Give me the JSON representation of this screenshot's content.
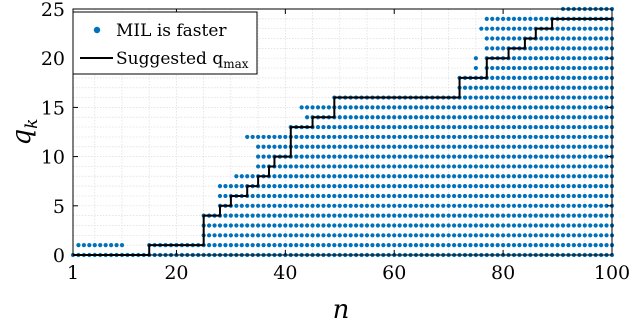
{
  "chart_data": {
    "type": "scatter",
    "xlabel": "n",
    "ylabel": "q",
    "ylabel_sub": "k",
    "xlim": [
      1,
      100
    ],
    "ylim": [
      0,
      25
    ],
    "xticks": [
      1,
      20,
      40,
      60,
      80,
      100
    ],
    "yticks": [
      0,
      5,
      10,
      15,
      20,
      25
    ],
    "grid": true,
    "legend_position": "top-left",
    "colors": {
      "points": "#0072BD",
      "line": "#000000"
    },
    "series": [
      {
        "name": "MIL is faster",
        "kind": "points",
        "description_rule": "for each n, q values from lower bound to upper bound (inclusive)",
        "bounds": [
          {
            "n_from": 1,
            "n_to": 1,
            "q_min": 0,
            "q_max": 0
          },
          {
            "n_from": 2,
            "n_to": 10,
            "q_min": 0,
            "q_max": 1
          },
          {
            "n_from": 11,
            "n_to": 16,
            "q_min": 0,
            "q_max": 1
          },
          {
            "n_from": 17,
            "n_to": 24,
            "q_min": 0,
            "q_max": 1
          },
          {
            "n_from": 25,
            "n_to": 27,
            "q_min": 0,
            "q_max": 4
          },
          {
            "n_from": 28,
            "n_to": 30,
            "q_min": 0,
            "q_max": 7
          },
          {
            "n_from": 31,
            "n_to": 34,
            "q_min": 0,
            "q_max": 8
          },
          {
            "n_from": 35,
            "n_to": 37,
            "q_min": 0,
            "q_max": 12
          },
          {
            "n_from": 38,
            "n_to": 40,
            "q_min": 0,
            "q_max": 12
          },
          {
            "n_from": 41,
            "n_to": 43,
            "q_min": 0,
            "q_max": 13
          },
          {
            "n_from": 44,
            "n_to": 46,
            "q_min": 0,
            "q_max": 15
          },
          {
            "n_from": 47,
            "n_to": 48,
            "q_min": 0,
            "q_max": 15
          },
          {
            "n_from": 49,
            "n_to": 71,
            "q_min": 0,
            "q_max": 16
          },
          {
            "n_from": 72,
            "n_to": 76,
            "q_min": 0,
            "q_max": 18
          },
          {
            "n_from": 77,
            "n_to": 80,
            "q_min": 0,
            "q_max": 24
          },
          {
            "n_from": 81,
            "n_to": 85,
            "q_min": 0,
            "q_max": 24
          },
          {
            "n_from": 86,
            "n_to": 90,
            "q_min": 0,
            "q_max": 24
          },
          {
            "n_from": 91,
            "n_to": 100,
            "q_min": 0,
            "q_max": 25
          }
        ]
      },
      {
        "name": "Suggested q",
        "name_sub": "max",
        "kind": "step-line",
        "steps": [
          {
            "n": 1,
            "q": 0
          },
          {
            "n": 15,
            "q": 0
          },
          {
            "n": 15,
            "q": 1
          },
          {
            "n": 25,
            "q": 1
          },
          {
            "n": 25,
            "q": 4
          },
          {
            "n": 28,
            "q": 4
          },
          {
            "n": 28,
            "q": 5
          },
          {
            "n": 30,
            "q": 5
          },
          {
            "n": 30,
            "q": 6
          },
          {
            "n": 33,
            "q": 6
          },
          {
            "n": 33,
            "q": 7
          },
          {
            "n": 35,
            "q": 7
          },
          {
            "n": 35,
            "q": 8
          },
          {
            "n": 37,
            "q": 8
          },
          {
            "n": 37,
            "q": 9
          },
          {
            "n": 38,
            "q": 9
          },
          {
            "n": 38,
            "q": 10
          },
          {
            "n": 41,
            "q": 10
          },
          {
            "n": 41,
            "q": 13
          },
          {
            "n": 45,
            "q": 13
          },
          {
            "n": 45,
            "q": 14
          },
          {
            "n": 49,
            "q": 14
          },
          {
            "n": 49,
            "q": 16
          },
          {
            "n": 72,
            "q": 16
          },
          {
            "n": 72,
            "q": 18
          },
          {
            "n": 77,
            "q": 18
          },
          {
            "n": 77,
            "q": 20
          },
          {
            "n": 81,
            "q": 20
          },
          {
            "n": 81,
            "q": 21
          },
          {
            "n": 84,
            "q": 21
          },
          {
            "n": 84,
            "q": 22
          },
          {
            "n": 86,
            "q": 22
          },
          {
            "n": 86,
            "q": 23
          },
          {
            "n": 89,
            "q": 23
          },
          {
            "n": 89,
            "q": 24
          },
          {
            "n": 100,
            "q": 24
          }
        ]
      }
    ],
    "extra_points": [
      {
        "n": 2,
        "q": 1
      },
      {
        "n": 3,
        "q": 1
      },
      {
        "n": 4,
        "q": 1
      },
      {
        "n": 5,
        "q": 1
      },
      {
        "n": 6,
        "q": 1
      },
      {
        "n": 7,
        "q": 1
      },
      {
        "n": 9,
        "q": 1
      },
      {
        "n": 33,
        "q": 12
      },
      {
        "n": 34,
        "q": 12
      },
      {
        "n": 35,
        "q": 12
      },
      {
        "n": 36,
        "q": 12
      },
      {
        "n": 43,
        "q": 15
      },
      {
        "n": 45,
        "q": 15
      },
      {
        "n": 75,
        "q": 19
      },
      {
        "n": 75,
        "q": 20
      },
      {
        "n": 76,
        "q": 23
      },
      {
        "n": 77,
        "q": 23
      },
      {
        "n": 79,
        "q": 24
      },
      {
        "n": 80,
        "q": 22
      },
      {
        "n": 81,
        "q": 24
      },
      {
        "n": 82,
        "q": 24
      },
      {
        "n": 83,
        "q": 24
      },
      {
        "n": 81,
        "q": 23
      },
      {
        "n": 82,
        "q": 21
      },
      {
        "n": 95,
        "q": 25
      },
      {
        "n": 96,
        "q": 25
      },
      {
        "n": 97,
        "q": 25
      },
      {
        "n": 98,
        "q": 25
      }
    ]
  }
}
